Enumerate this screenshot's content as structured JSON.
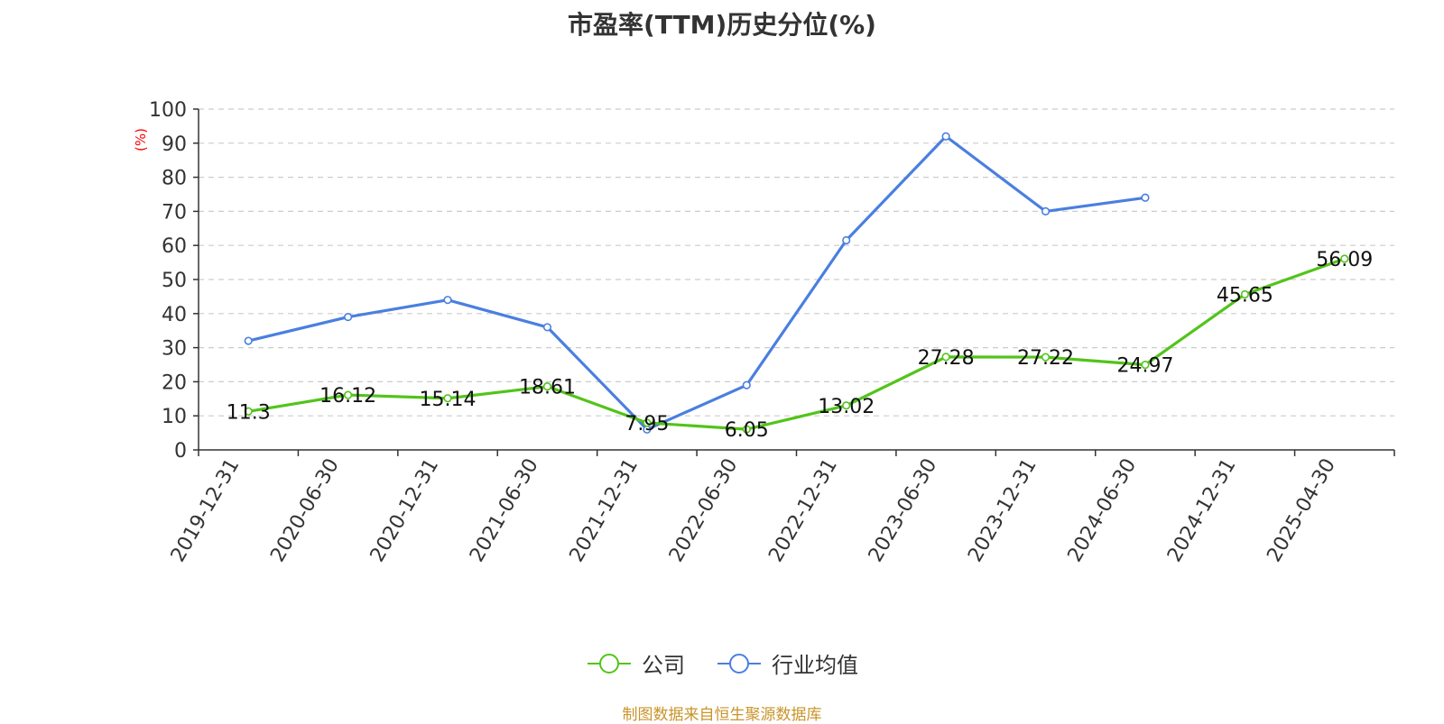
{
  "title": "市盈率(TTM)历史分位(%)",
  "source_note": "制图数据来自恒生聚源数据库",
  "chart_data": {
    "type": "line",
    "title": "市盈率(TTM)历史分位(%)",
    "ylabel": "(%)",
    "xlabel": "",
    "ylim": [
      0,
      100
    ],
    "yticks": [
      0,
      10,
      20,
      30,
      40,
      50,
      60,
      70,
      80,
      90,
      100
    ],
    "categories": [
      "2019-12-31",
      "2020-06-30",
      "2020-12-31",
      "2021-06-30",
      "2021-12-31",
      "2022-06-30",
      "2022-12-31",
      "2023-06-30",
      "2023-12-31",
      "2024-06-30",
      "2024-12-31",
      "2025-04-30"
    ],
    "grid": true,
    "legend_position": "bottom",
    "series": [
      {
        "name": "公司",
        "color": "#52c41a",
        "show_labels": true,
        "values": [
          11.3,
          16.12,
          15.14,
          18.61,
          7.95,
          6.05,
          13.02,
          27.28,
          27.22,
          24.97,
          45.65,
          56.09
        ],
        "labels": [
          "11.3",
          "16.12",
          "15.14",
          "18.61",
          "7.95",
          "6.05",
          "13.02",
          "27.28",
          "27.22",
          "24.97",
          "45.65",
          "56.09"
        ]
      },
      {
        "name": "行业均值",
        "color": "#4a7fe0",
        "show_labels": false,
        "values": [
          32,
          39,
          44,
          36,
          6,
          19,
          61.5,
          92,
          70,
          74,
          null,
          null
        ]
      }
    ]
  }
}
